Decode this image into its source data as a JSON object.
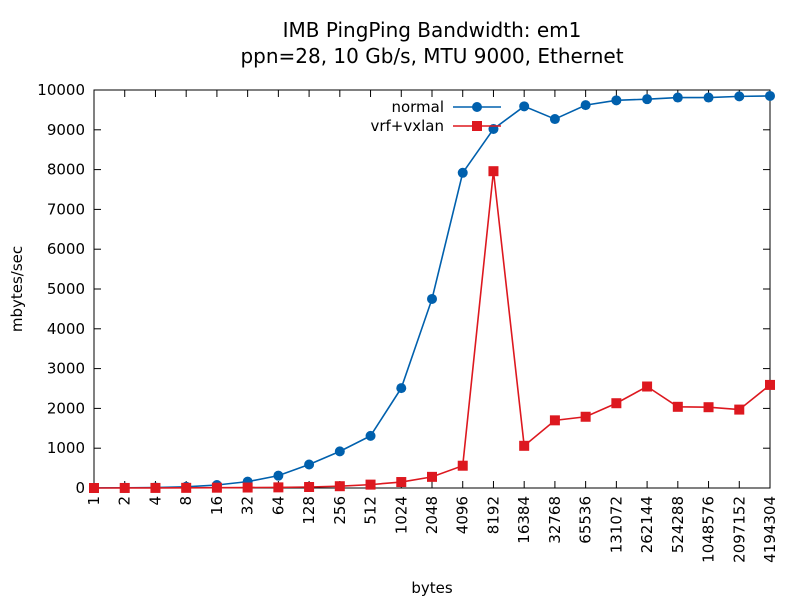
{
  "chart_data": {
    "type": "line",
    "title_lines": [
      "IMB PingPing Bandwidth: em1",
      "ppn=28, 10 Gb/s, MTU 9000, Ethernet"
    ],
    "xlabel": "bytes",
    "ylabel": "mbytes/sec",
    "x_scale": "log2",
    "categories": [
      "1",
      "2",
      "4",
      "8",
      "16",
      "32",
      "64",
      "128",
      "256",
      "512",
      "1024",
      "2048",
      "4096",
      "8192",
      "16384",
      "32768",
      "65536",
      "131072",
      "262144",
      "524288",
      "1048576",
      "2097152",
      "4194304"
    ],
    "ylim": [
      0,
      10000
    ],
    "yticks": [
      0,
      1000,
      2000,
      3000,
      4000,
      5000,
      6000,
      7000,
      8000,
      9000,
      10000
    ],
    "legend_position": "top-right",
    "grid": false,
    "series": [
      {
        "name": "normal",
        "color": "#0060ad",
        "marker": "circle",
        "values": [
          3,
          6,
          12,
          30,
          75,
          160,
          310,
          590,
          920,
          1310,
          2510,
          4750,
          7920,
          9020,
          9590,
          9270,
          9620,
          9740,
          9770,
          9810,
          9810,
          9840,
          9850
        ]
      },
      {
        "name": "vrf+vxlan",
        "color": "#dd181f",
        "marker": "square",
        "values": [
          0,
          1,
          2,
          4,
          8,
          12,
          16,
          25,
          45,
          85,
          150,
          280,
          560,
          7960,
          1060,
          1700,
          1790,
          2130,
          2550,
          2040,
          2030,
          1970,
          2590
        ]
      }
    ]
  }
}
